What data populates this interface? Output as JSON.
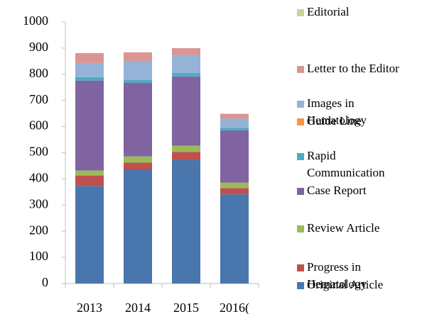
{
  "chart_data": {
    "type": "stacked_bar",
    "categories": [
      "2013",
      "2014",
      "2015",
      "2016("
    ],
    "series": [
      {
        "name": "Original Article",
        "color": "#4a76ae",
        "values": [
          373,
          435,
          473,
          341
        ]
      },
      {
        "name": "Progress in Hematology",
        "color": "#c0504d",
        "values": [
          40,
          27,
          30,
          24
        ]
      },
      {
        "name": "Review Article",
        "color": "#9bbb59",
        "values": [
          19,
          24,
          24,
          21
        ]
      },
      {
        "name": "Case Report",
        "color": "#8064a2",
        "values": [
          344,
          282,
          265,
          200
        ]
      },
      {
        "name": "Rapid Communication",
        "color": "#4bacc6",
        "values": [
          13,
          10,
          13,
          9
        ]
      },
      {
        "name": "Guide Line",
        "color": "#f79646",
        "values": [
          0,
          0,
          0,
          0
        ]
      },
      {
        "name": "Images in Hematology",
        "color": "#95b3d7",
        "values": [
          54,
          73,
          68,
          35
        ]
      },
      {
        "name": "Letter to the Editor",
        "color": "#d99694",
        "values": [
          38,
          33,
          27,
          19
        ]
      },
      {
        "name": "Editorial",
        "color": "#c3d69b",
        "values": [
          0,
          0,
          0,
          0
        ]
      }
    ],
    "ylim": [
      0,
      1000
    ],
    "yticks": [
      0,
      100,
      200,
      300,
      400,
      500,
      600,
      700,
      800,
      900,
      1000
    ]
  }
}
